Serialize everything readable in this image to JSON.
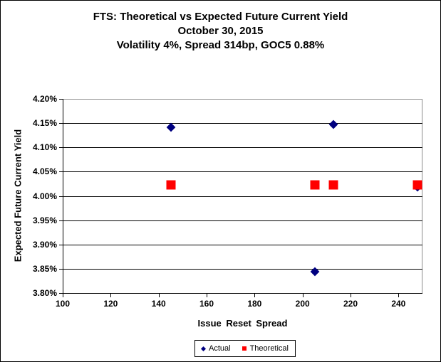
{
  "title": {
    "line1": "FTS: Theoretical vs Expected Future Current Yield",
    "line2": "October 30, 2015",
    "line3": "Volatility 4%, Spread 314bp, GOC5 0.88%"
  },
  "chart_data": {
    "type": "scatter",
    "title": "FTS: Theoretical vs Expected Future Current Yield — October 30, 2015 — Volatility 4%, Spread 314bp, GOC5 0.88%",
    "xlabel": "Issue Reset Spread",
    "ylabel": "Expected Future Current Yield",
    "xlim": [
      100,
      250
    ],
    "ylim": [
      3.8,
      4.2
    ],
    "grid": true,
    "legend_position": "bottom",
    "x_ticks": [
      {
        "value": 100,
        "label": "100"
      },
      {
        "value": 120,
        "label": "120"
      },
      {
        "value": 140,
        "label": "140"
      },
      {
        "value": 160,
        "label": "160"
      },
      {
        "value": 180,
        "label": "180"
      },
      {
        "value": 200,
        "label": "200"
      },
      {
        "value": 220,
        "label": "220"
      },
      {
        "value": 240,
        "label": "240"
      }
    ],
    "y_ticks": [
      {
        "value": 4.2,
        "label": "4.20%"
      },
      {
        "value": 4.15,
        "label": "4.15%"
      },
      {
        "value": 4.1,
        "label": "4.10%"
      },
      {
        "value": 4.05,
        "label": "4.05%"
      },
      {
        "value": 4.0,
        "label": "4.00%"
      },
      {
        "value": 3.95,
        "label": "3.95%"
      },
      {
        "value": 3.9,
        "label": "3.90%"
      },
      {
        "value": 3.85,
        "label": "3.85%"
      },
      {
        "value": 3.8,
        "label": "3.80%"
      }
    ],
    "series": [
      {
        "name": "Actual",
        "marker": "diamond",
        "color": "#000080",
        "points": [
          {
            "x": 145,
            "y": 4.141
          },
          {
            "x": 205,
            "y": 3.844
          },
          {
            "x": 213,
            "y": 4.147
          },
          {
            "x": 248,
            "y": 4.018
          }
        ]
      },
      {
        "name": "Theoretical",
        "marker": "square",
        "color": "#FF0000",
        "points": [
          {
            "x": 145,
            "y": 4.022
          },
          {
            "x": 205,
            "y": 4.022
          },
          {
            "x": 213,
            "y": 4.022
          },
          {
            "x": 248,
            "y": 4.022
          }
        ]
      }
    ]
  },
  "colors": {
    "gridline": "#000000",
    "plot_border": "#8c8c8c",
    "axis": "#000000",
    "background": "#ffffff"
  }
}
